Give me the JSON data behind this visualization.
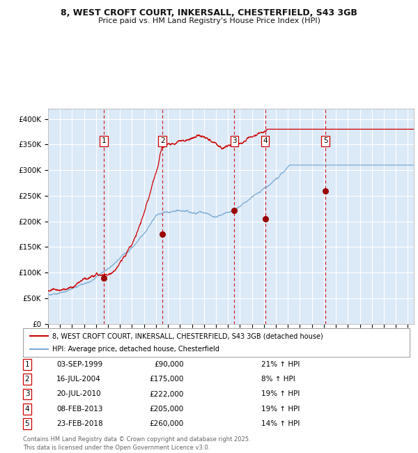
{
  "title_line1": "8, WEST CROFT COURT, INKERSALL, CHESTERFIELD, S43 3GB",
  "title_line2": "Price paid vs. HM Land Registry's House Price Index (HPI)",
  "bg_color": "#dce9f7",
  "grid_color": "#ffffff",
  "red_line_color": "#cc0000",
  "blue_line_color": "#7dadd4",
  "purchase_marker_color": "#990000",
  "dashed_line_color": "#cc0000",
  "ylim": [
    0,
    420000
  ],
  "yticks": [
    0,
    50000,
    100000,
    150000,
    200000,
    250000,
    300000,
    350000,
    400000
  ],
  "ytick_labels": [
    "£0",
    "£50K",
    "£100K",
    "£150K",
    "£200K",
    "£250K",
    "£300K",
    "£350K",
    "£400K"
  ],
  "xlim_start": 1995.0,
  "xlim_end": 2025.5,
  "purchases": [
    {
      "label": "1",
      "date": "03-SEP-1999",
      "year": 1999.67,
      "price": 90000,
      "hpi_pct": "21%",
      "hpi_dir": "↑"
    },
    {
      "label": "2",
      "date": "16-JUL-2004",
      "year": 2004.54,
      "price": 175000,
      "hpi_pct": "8%",
      "hpi_dir": "↑"
    },
    {
      "label": "3",
      "date": "20-JUL-2010",
      "year": 2010.54,
      "price": 222000,
      "hpi_pct": "19%",
      "hpi_dir": "↑"
    },
    {
      "label": "4",
      "date": "08-FEB-2013",
      "year": 2013.1,
      "price": 205000,
      "hpi_pct": "19%",
      "hpi_dir": "↑"
    },
    {
      "label": "5",
      "date": "23-FEB-2018",
      "year": 2018.14,
      "price": 260000,
      "hpi_pct": "14%",
      "hpi_dir": "↑"
    }
  ],
  "legend_entries": [
    "8, WEST CROFT COURT, INKERSALL, CHESTERFIELD, S43 3GB (detached house)",
    "HPI: Average price, detached house, Chesterfield"
  ],
  "table_rows": [
    [
      "1",
      "03-SEP-1999",
      "£90,000",
      "21% ↑ HPI"
    ],
    [
      "2",
      "16-JUL-2004",
      "£175,000",
      "8% ↑ HPI"
    ],
    [
      "3",
      "20-JUL-2010",
      "£222,000",
      "19% ↑ HPI"
    ],
    [
      "4",
      "08-FEB-2013",
      "£205,000",
      "19% ↑ HPI"
    ],
    [
      "5",
      "23-FEB-2018",
      "£260,000",
      "14% ↑ HPI"
    ]
  ],
  "footnote": "Contains HM Land Registry data © Crown copyright and database right 2025.\nThis data is licensed under the Open Government Licence v3.0."
}
